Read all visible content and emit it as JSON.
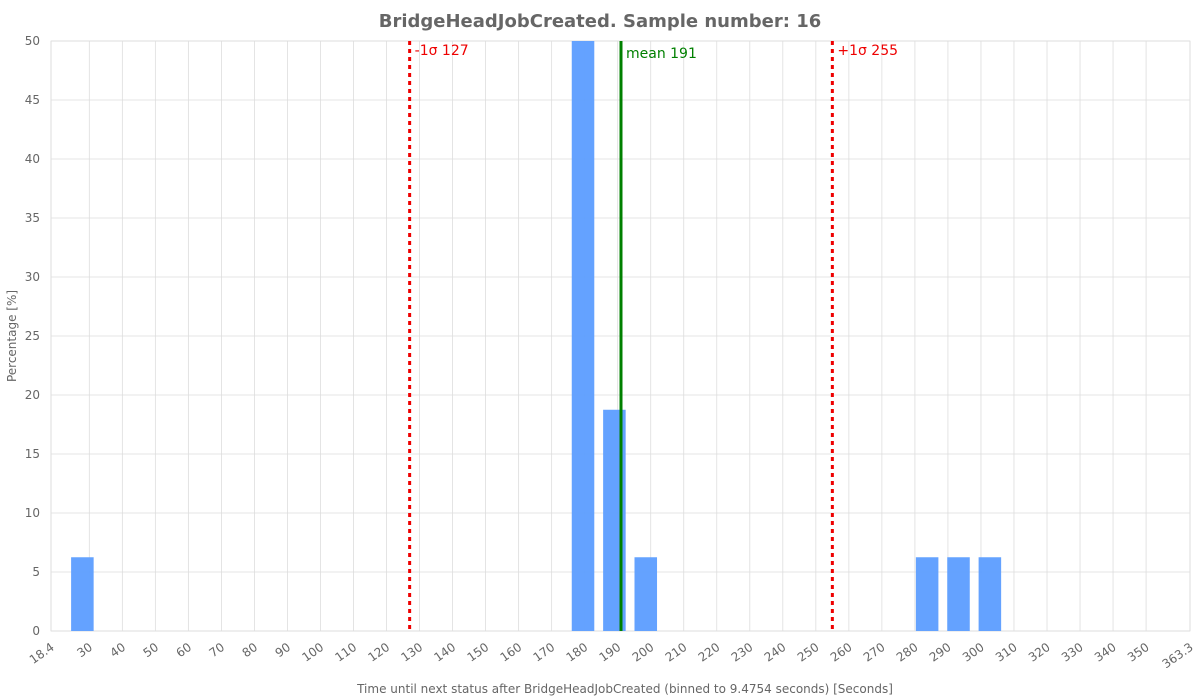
{
  "chart_data": {
    "type": "bar",
    "title": "BridgeHeadJobCreated. Sample number: 16",
    "xlabel": "Time until next status after BridgeHeadJobCreated (binned to 9.4754 seconds) [Seconds]",
    "ylabel": "Percentage [%]",
    "xlim": [
      18.4,
      363.3
    ],
    "ylim": [
      0,
      50
    ],
    "grid": true,
    "x_ticks": [
      "18.4",
      "30",
      "40",
      "50",
      "60",
      "70",
      "80",
      "90",
      "100",
      "110",
      "120",
      "130",
      "140",
      "150",
      "160",
      "170",
      "180",
      "190",
      "200",
      "210",
      "220",
      "230",
      "240",
      "250",
      "260",
      "270",
      "280",
      "290",
      "300",
      "310",
      "320",
      "330",
      "340",
      "350",
      "363.3"
    ],
    "y_ticks": [
      0,
      5,
      10,
      15,
      20,
      25,
      30,
      35,
      40,
      45,
      50
    ],
    "bin_width": 9.4754,
    "bars": [
      {
        "x": 27.9,
        "value": 6.25
      },
      {
        "x": 179.5,
        "value": 50
      },
      {
        "x": 189.0,
        "value": 18.75
      },
      {
        "x": 198.5,
        "value": 6.25
      },
      {
        "x": 283.7,
        "value": 6.25
      },
      {
        "x": 293.2,
        "value": 6.25
      },
      {
        "x": 302.7,
        "value": 6.25
      }
    ],
    "lines": [
      {
        "x": 127,
        "label": "-1σ 127",
        "color": "#ee0000",
        "style": "dotted"
      },
      {
        "x": 191,
        "label": "mean 191",
        "color": "#008000",
        "style": "solid"
      },
      {
        "x": 255,
        "label": "+1σ 255",
        "color": "#ee0000",
        "style": "dotted"
      }
    ],
    "bar_color": "#5c9dff"
  }
}
